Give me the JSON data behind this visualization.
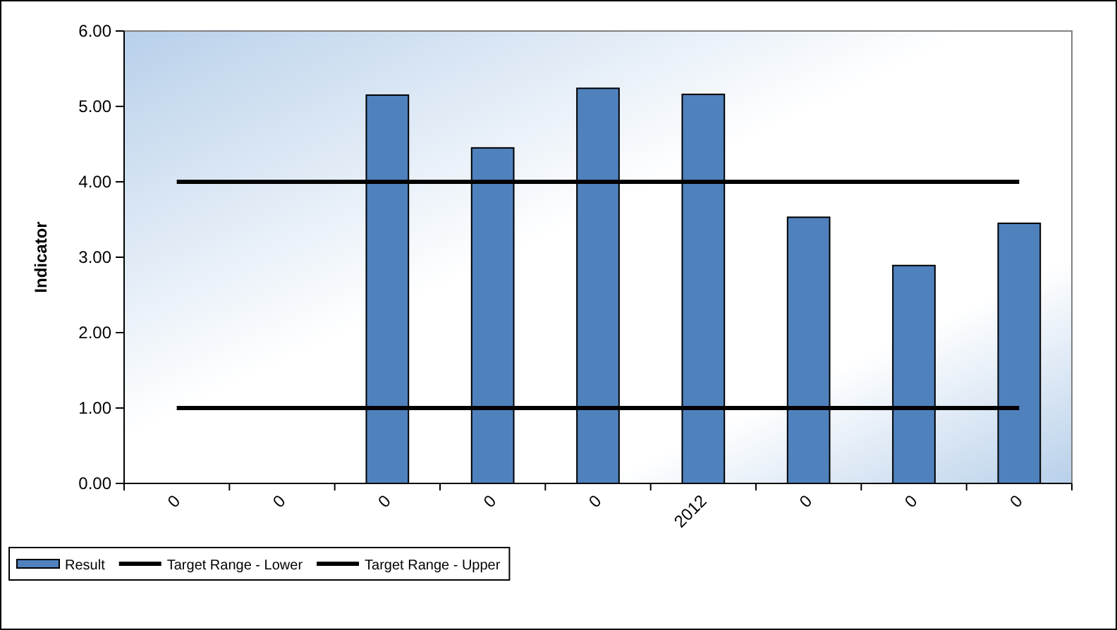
{
  "chart_data": {
    "type": "bar",
    "ylabel": "Indicator",
    "categories": [
      "0",
      "0",
      "0",
      "0",
      "0",
      "2012",
      "0",
      "0",
      "0"
    ],
    "series": [
      {
        "name": "Result",
        "color": "#4f81bd",
        "values": [
          null,
          null,
          5.15,
          4.45,
          5.24,
          5.16,
          3.53,
          2.89,
          3.45
        ]
      },
      {
        "name": "Target Range - Lower",
        "type": "line",
        "color": "#000000",
        "values": [
          1,
          1,
          1,
          1,
          1,
          1,
          1,
          1,
          1
        ]
      },
      {
        "name": "Target Range - Upper",
        "type": "line",
        "color": "#000000",
        "values": [
          4,
          4,
          4,
          4,
          4,
          4,
          4,
          4,
          4
        ]
      }
    ],
    "ylim": [
      0,
      6
    ],
    "yticks": [
      {
        "value": 0,
        "label": "0.00"
      },
      {
        "value": 1,
        "label": "1.00"
      },
      {
        "value": 2,
        "label": "2.00"
      },
      {
        "value": 3,
        "label": "3.00"
      },
      {
        "value": 4,
        "label": "4.00"
      },
      {
        "value": 5,
        "label": "5.00"
      },
      {
        "value": 6,
        "label": "6.00"
      }
    ],
    "grid": false,
    "legend": "bottom left",
    "marker": "none",
    "line_style": "solid"
  }
}
